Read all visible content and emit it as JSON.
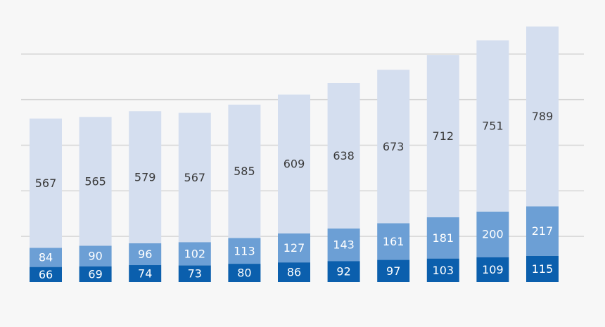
{
  "chart_data": {
    "type": "bar",
    "stacked": true,
    "categories": [
      "",
      "",
      "",
      "",
      "",
      "",
      "",
      "",
      "",
      "",
      ""
    ],
    "series": [
      {
        "values": [
          66,
          69,
          74,
          73,
          80,
          86,
          92,
          97,
          103,
          109,
          115
        ],
        "color": "#0b5fad",
        "label_color": "#ffffff"
      },
      {
        "values": [
          84,
          90,
          96,
          102,
          113,
          127,
          143,
          161,
          181,
          200,
          217
        ],
        "color": "#6c9fd5",
        "label_color": "#ffffff"
      },
      {
        "values": [
          567,
          565,
          579,
          567,
          585,
          609,
          638,
          673,
          712,
          751,
          789
        ],
        "color": "#d4deef",
        "label_color": "#3a3a3a"
      }
    ],
    "ylim": [
      0,
      1200
    ],
    "grid": true,
    "legend": "none",
    "background": "#f7f7f7",
    "grid_color": "#d6d6d6"
  }
}
